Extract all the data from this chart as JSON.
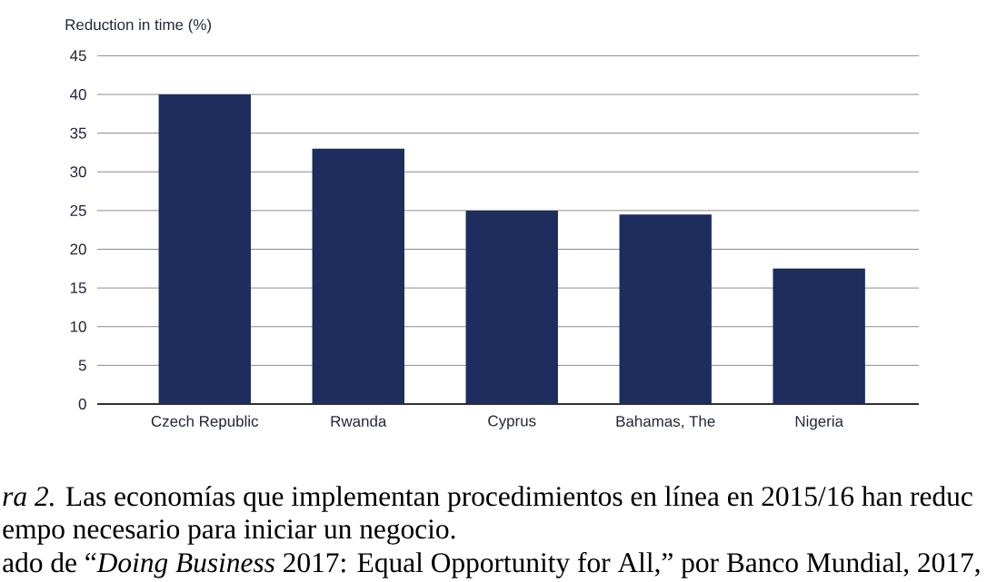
{
  "chart_data": {
    "type": "bar",
    "ylabel": "Reduction in time (%)",
    "categories": [
      "Czech Republic",
      "Rwanda",
      "Cyprus",
      "Bahamas, The",
      "Nigeria"
    ],
    "values": [
      40,
      33,
      25,
      24.5,
      17.5
    ],
    "color": "#1c2d5e",
    "ylim": [
      0,
      45
    ],
    "yticks": [
      0,
      5,
      10,
      15,
      20,
      25,
      30,
      35,
      40,
      45
    ],
    "grid": "y",
    "annotations": [
      "*ra 2.* Las economías que implementan procedimientos en línea en 2015/16 han reduc",
      "empo necesario para iniciar un negocio.",
      "ado de “*Doing Business* 2017: Equal Opportunity for All,” por Banco Mundial, 2017,"
    ]
  }
}
